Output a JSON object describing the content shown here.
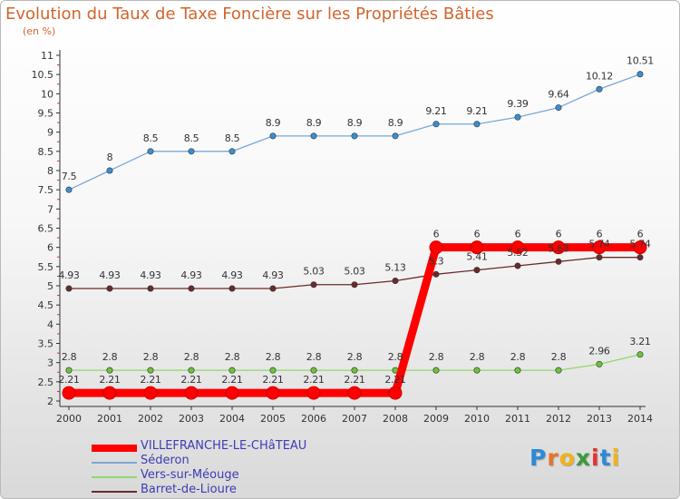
{
  "chart_data": {
    "type": "line",
    "title": "Evolution du Taux de Taxe Foncière sur les Propriétés Bâties",
    "subtitle": "(en %)",
    "x": [
      "2000",
      "2001",
      "2002",
      "2003",
      "2004",
      "2005",
      "2006",
      "2007",
      "2008",
      "2009",
      "2010",
      "2011",
      "2012",
      "2013",
      "2014"
    ],
    "ylim": [
      2,
      11
    ],
    "yticks": [
      "2",
      "2.5",
      "3",
      "3.5",
      "4",
      "4.5",
      "5",
      "5.5",
      "6",
      "6.5",
      "7",
      "7.5",
      "8",
      "8.5",
      "9",
      "9.5",
      "10",
      "10.5",
      "11"
    ],
    "series": [
      {
        "name": "Séderon",
        "color": "#7ba7d7",
        "marker": "#3a8fd0",
        "values": [
          7.5,
          8,
          8.5,
          8.5,
          8.5,
          8.9,
          8.9,
          8.9,
          8.9,
          9.21,
          9.21,
          9.39,
          9.64,
          10.12,
          10.51
        ],
        "labels": [
          "7.5",
          "8",
          "8.5",
          "8.5",
          "8.5",
          "8.9",
          "8.9",
          "8.9",
          "8.9",
          "9.21",
          "9.21",
          "9.39",
          "9.64",
          "10.12",
          "10.51"
        ]
      },
      {
        "name": "Barret-de-Lioure",
        "color": "#6b2a2a",
        "marker": "#6b2a2a",
        "values": [
          4.93,
          4.93,
          4.93,
          4.93,
          4.93,
          4.93,
          5.03,
          5.03,
          5.13,
          5.3,
          5.41,
          5.52,
          5.63,
          5.74,
          5.74
        ],
        "labels": [
          "4.93",
          "4.93",
          "4.93",
          "4.93",
          "4.93",
          "4.93",
          "5.03",
          "5.03",
          "5.13",
          "5.3",
          "5.41",
          "5.52",
          "5.63",
          "5.74",
          "5.74"
        ]
      },
      {
        "name": "Vers-sur-Méouge",
        "color": "#8fd86a",
        "marker": "#6cc43a",
        "values": [
          2.8,
          2.8,
          2.8,
          2.8,
          2.8,
          2.8,
          2.8,
          2.8,
          2.8,
          2.8,
          2.8,
          2.8,
          2.8,
          2.96,
          3.21
        ],
        "labels": [
          "2.8",
          "2.8",
          "2.8",
          "2.8",
          "2.8",
          "2.8",
          "2.8",
          "2.8",
          "2.8",
          "2.8",
          "2.8",
          "2.8",
          "2.8",
          "2.96",
          "3.21"
        ]
      },
      {
        "name": "VILLEFRANCHE-LE-CHâTEAU",
        "color": "#ff0000",
        "marker": "#ff0000",
        "values": [
          2.21,
          2.21,
          2.21,
          2.21,
          2.21,
          2.21,
          2.21,
          2.21,
          2.21,
          6,
          6,
          6,
          6,
          6,
          6
        ],
        "labels": [
          "2.21",
          "2.21",
          "2.21",
          "2.21",
          "2.21",
          "2.21",
          "2.21",
          "2.21",
          "2.21",
          "6",
          "6",
          "6",
          "6",
          "6",
          "6"
        ]
      }
    ]
  },
  "legend": [
    {
      "name": "VILLEFRANCHE-LE-CHâTEAU",
      "color": "#ff0000",
      "thick": true
    },
    {
      "name": "Séderon",
      "color": "#7ba7d7",
      "thick": false
    },
    {
      "name": "Vers-sur-Méouge",
      "color": "#8fd86a",
      "thick": false
    },
    {
      "name": "Barret-de-Lioure",
      "color": "#6b2a2a",
      "thick": false
    }
  ],
  "logo": {
    "text": "Proxiti",
    "colors": [
      "#2e8ad6",
      "#e8742a",
      "#f2b21c",
      "#3a9a3a",
      "#e83030",
      "#2e8ad6",
      "#f2b21c"
    ]
  }
}
